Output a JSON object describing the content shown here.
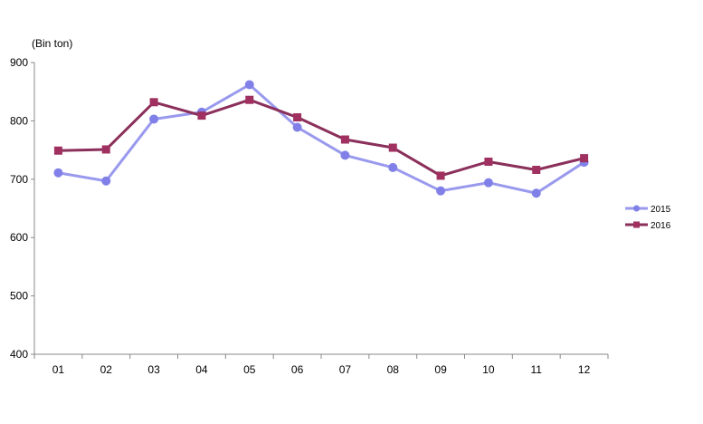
{
  "chart_data": {
    "type": "line",
    "unit_label": "(Bin ton)",
    "categories": [
      "01",
      "02",
      "03",
      "04",
      "05",
      "06",
      "07",
      "08",
      "09",
      "10",
      "11",
      "12"
    ],
    "ylim": [
      400,
      900
    ],
    "yticks": [
      400,
      500,
      600,
      700,
      800,
      900
    ],
    "grid": false,
    "legend_position": "right",
    "series": [
      {
        "name": "2015",
        "color": "#9999EE",
        "marker_color": "#8080E8",
        "marker": "circle",
        "values": [
          711,
          697,
          803,
          815,
          862,
          789,
          741,
          720,
          680,
          694,
          676,
          729
        ]
      },
      {
        "name": "2016",
        "color": "#8B2F5B",
        "marker_color": "#A03060",
        "marker": "square",
        "values": [
          749,
          751,
          832,
          809,
          836,
          806,
          768,
          754,
          706,
          730,
          716,
          736
        ]
      }
    ]
  }
}
